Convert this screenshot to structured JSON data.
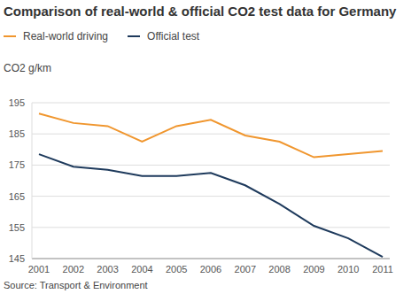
{
  "chart_data": {
    "type": "line",
    "title": "Comparison of real-world & official CO2 test data for Germany",
    "y_label": "CO2 g/km",
    "source": "Source: Transport & Environment",
    "categories": [
      "2001",
      "2002",
      "2003",
      "2004",
      "2005",
      "2006",
      "2007",
      "2008",
      "2009",
      "2010",
      "2011"
    ],
    "series": [
      {
        "name": "Real-world driving",
        "color": "#f0962e",
        "values": [
          191.5,
          188.5,
          187.5,
          182.5,
          187.5,
          189.5,
          184.5,
          182.5,
          177.5,
          178.5,
          179.5
        ]
      },
      {
        "name": "Official test",
        "color": "#1e3a5c",
        "values": [
          178.5,
          174.5,
          173.5,
          171.5,
          171.5,
          172.5,
          168.5,
          162.5,
          155.5,
          151.5,
          145.5
        ]
      }
    ],
    "ylim": [
      145,
      195
    ],
    "yticks": [
      145,
      155,
      165,
      175,
      185,
      195
    ],
    "grid": true,
    "legend": "top"
  }
}
